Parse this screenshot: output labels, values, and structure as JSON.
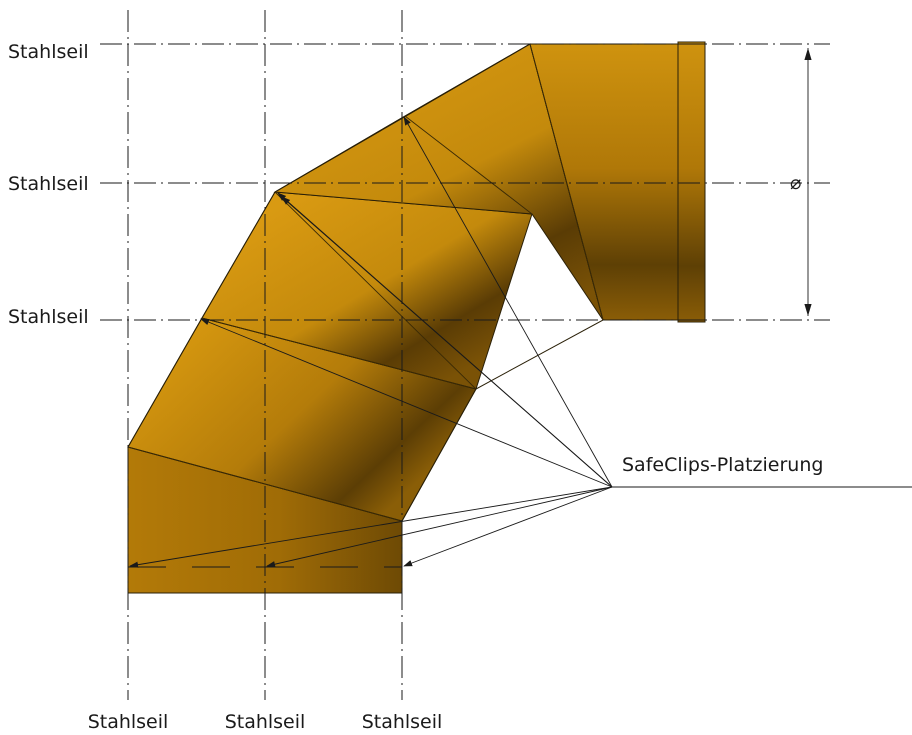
{
  "labels": {
    "left_1": "Stahlseil",
    "left_2": "Stahlseil",
    "left_3": "Stahlseil",
    "bottom_1": "Stahlseil",
    "bottom_2": "Stahlseil",
    "bottom_3": "Stahlseil",
    "callout": "SafeClips-Platzierung",
    "diameter_symbol": "⌀"
  },
  "colors": {
    "pipe_base": "#c48a0c",
    "pipe_light": "#d99a12",
    "pipe_dark": "#5a3c05",
    "line": "#1a1a1a"
  }
}
